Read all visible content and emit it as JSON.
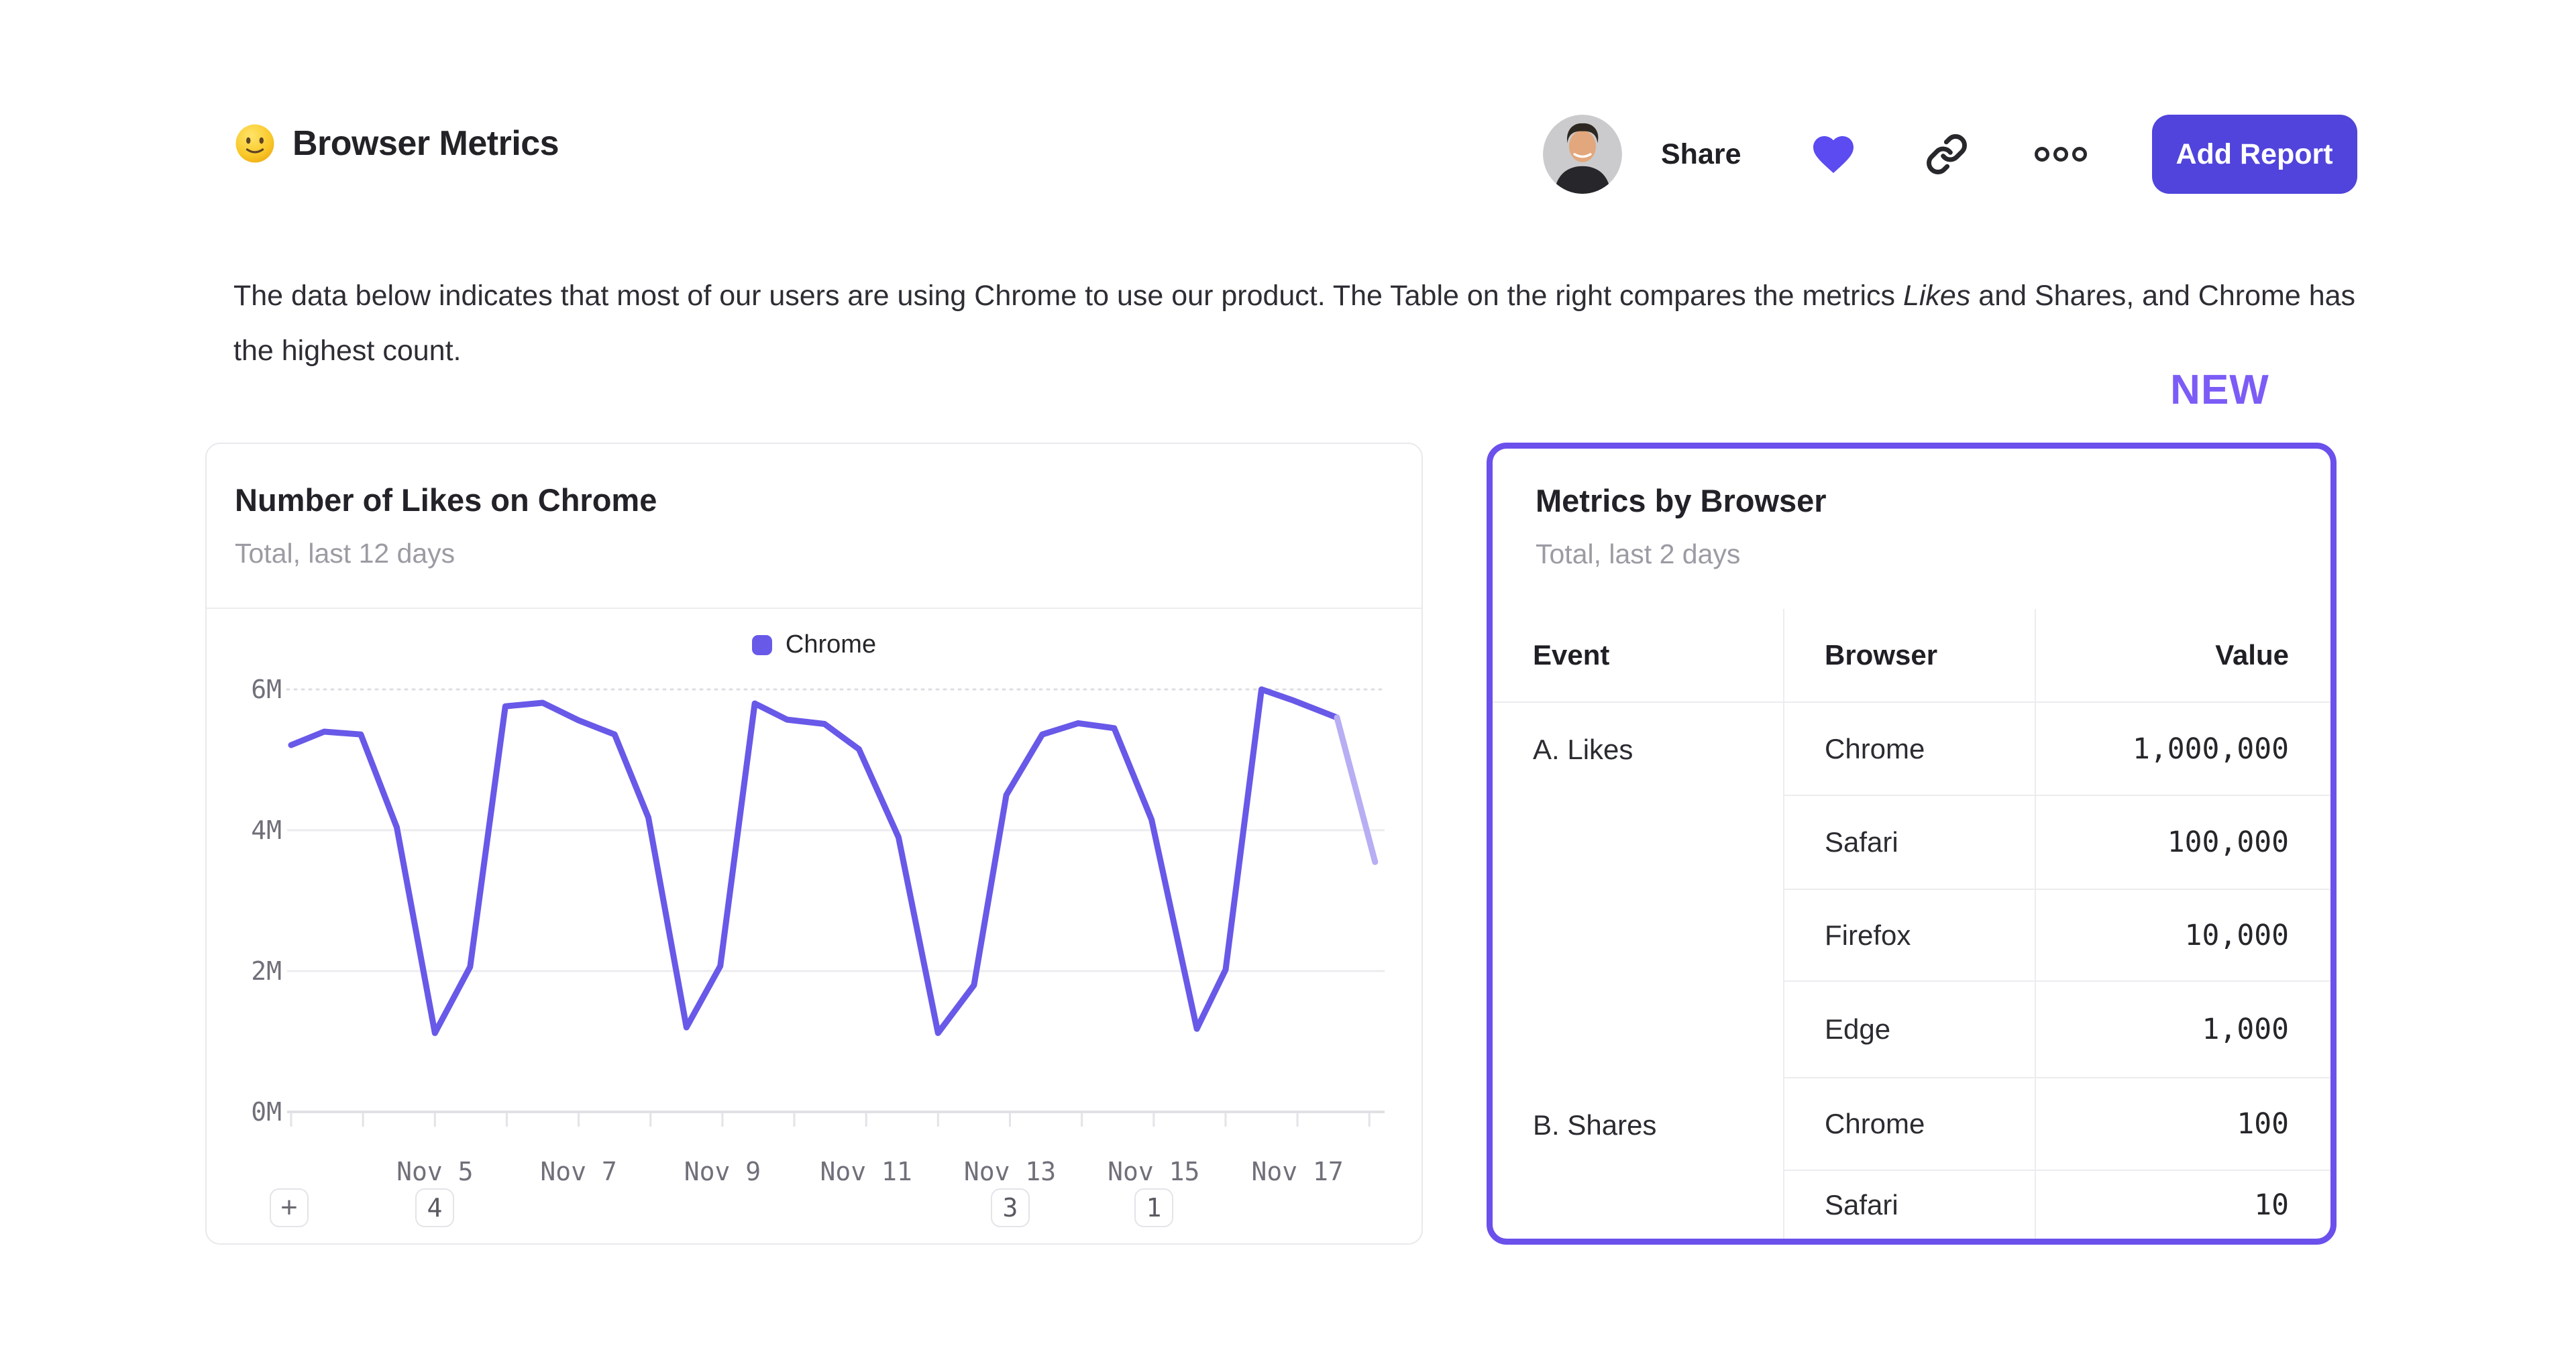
{
  "header": {
    "emoji_name": "slightly-smiling-face-emoji",
    "title": "Browser Metrics",
    "share_label": "Share",
    "add_report_label": "Add Report"
  },
  "description": {
    "part1": "The data below indicates that most of our users are using Chrome to use our product. The Table on the right compares the metrics ",
    "italic": "Likes",
    "part2": " and Shares, and Chrome has the highest count."
  },
  "new_badge": "NEW",
  "colors": {
    "accent_purple": "#5b4bf0",
    "line_purple": "#6859e8",
    "line_fade": "#b7aef3",
    "button_bg": "#5044dc",
    "new_badge": "#7c5cf6",
    "card_border": "#6b50ec",
    "gridline": "#ececf0",
    "axis_line": "#e1e1e5"
  },
  "chart_data": {
    "type": "line",
    "title": "Number of Likes on Chrome",
    "subtitle": "Total, last 12 days",
    "legend": [
      {
        "label": "Chrome",
        "color": "#6859e8"
      }
    ],
    "grid": true,
    "legend_position": "top-center",
    "xlabel": "",
    "ylabel": "",
    "y_tick_labels": [
      "0M",
      "2M",
      "4M",
      "6M"
    ],
    "y_tick_values_millions": [
      0,
      2,
      4,
      6
    ],
    "ylim_millions": [
      0,
      6.7
    ],
    "x_tick_labels": [
      "Nov 5",
      "Nov 7",
      "Nov 9",
      "Nov 11",
      "Nov 13",
      "Nov 15",
      "Nov 17"
    ],
    "x_tick_days": [
      5,
      7,
      9,
      11,
      13,
      15,
      17
    ],
    "minor_tick_days": [
      3,
      4,
      5,
      6,
      7,
      8,
      9,
      10,
      11,
      12,
      13,
      14,
      15,
      16,
      17,
      18
    ],
    "x_domain_days": [
      3,
      18.16
    ],
    "series": [
      {
        "name": "Chrome",
        "color": "#6859e8",
        "fade_color": "#b7aef3",
        "fade_from_index": 29,
        "points_day_value_millions": [
          [
            3.0,
            5.21
          ],
          [
            3.46,
            5.4
          ],
          [
            3.97,
            5.36
          ],
          [
            4.47,
            4.04
          ],
          [
            5.0,
            1.12
          ],
          [
            5.49,
            2.06
          ],
          [
            5.98,
            5.76
          ],
          [
            6.5,
            5.81
          ],
          [
            7.0,
            5.56
          ],
          [
            7.5,
            5.36
          ],
          [
            7.97,
            4.18
          ],
          [
            8.5,
            1.2
          ],
          [
            8.97,
            2.07
          ],
          [
            9.45,
            5.8
          ],
          [
            9.9,
            5.57
          ],
          [
            10.42,
            5.51
          ],
          [
            10.9,
            5.15
          ],
          [
            11.45,
            3.9
          ],
          [
            12.0,
            1.12
          ],
          [
            12.5,
            1.8
          ],
          [
            12.95,
            4.5
          ],
          [
            13.45,
            5.36
          ],
          [
            13.95,
            5.52
          ],
          [
            14.45,
            5.45
          ],
          [
            14.97,
            4.15
          ],
          [
            15.6,
            1.18
          ],
          [
            16.0,
            2.02
          ],
          [
            16.5,
            6.0
          ],
          [
            16.95,
            5.84
          ],
          [
            17.55,
            5.6
          ],
          [
            18.08,
            3.55
          ]
        ]
      }
    ],
    "annotations": [
      {
        "label": "+",
        "kind": "add-annotation-button",
        "day": null
      },
      {
        "label": "4",
        "kind": "annotation-count",
        "day": 5
      },
      {
        "label": "3",
        "kind": "annotation-count",
        "day": 13
      },
      {
        "label": "1",
        "kind": "annotation-count",
        "day": 15
      }
    ]
  },
  "metrics_card": {
    "title": "Metrics by Browser",
    "subtitle": "Total, last 2 days",
    "columns": [
      "Event",
      "Browser",
      "Value"
    ],
    "groups": [
      {
        "event": "A. Likes",
        "rows": [
          {
            "browser": "Chrome",
            "value": "1,000,000"
          },
          {
            "browser": "Safari",
            "value": "100,000"
          },
          {
            "browser": "Firefox",
            "value": "10,000"
          },
          {
            "browser": "Edge",
            "value": "1,000"
          }
        ]
      },
      {
        "event": "B. Shares",
        "rows": [
          {
            "browser": "Chrome",
            "value": "100"
          },
          {
            "browser": "Safari",
            "value": "10"
          }
        ]
      }
    ]
  }
}
